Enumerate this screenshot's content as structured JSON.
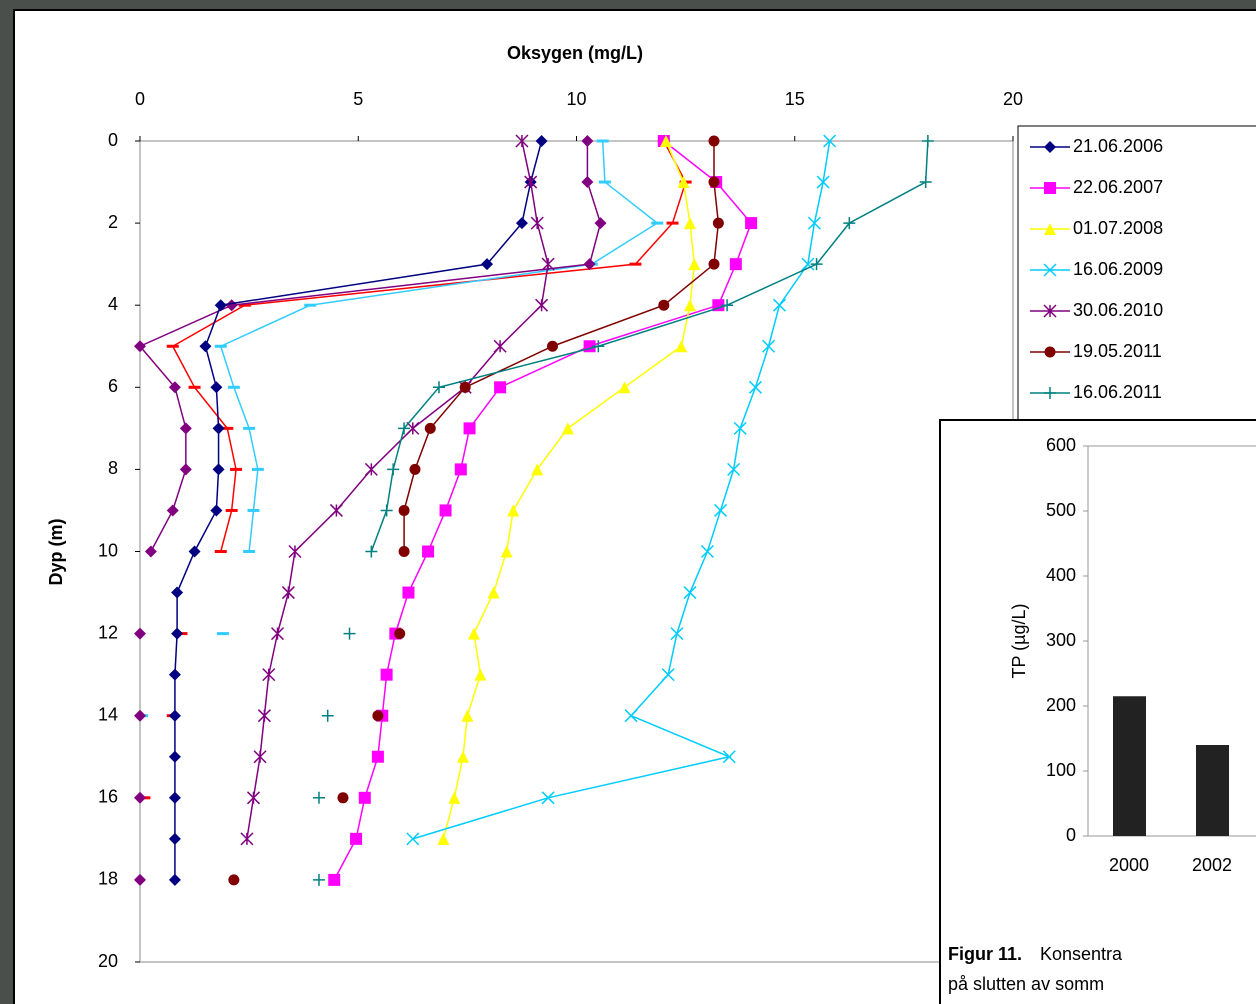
{
  "chart_data": [
    {
      "type": "line",
      "title": "Oksygen (mg/L)",
      "y_label": "Dyp (m)",
      "categories": [
        0,
        1,
        2,
        3,
        4,
        5,
        6,
        7,
        8,
        9,
        10,
        11,
        12,
        13,
        14,
        15,
        16,
        17,
        18
      ],
      "xlim": [
        0,
        20
      ],
      "xticks": [
        0,
        5,
        10,
        15,
        20
      ],
      "ylim": [
        0,
        20
      ],
      "yticks": [
        0,
        2,
        4,
        6,
        8,
        10,
        12,
        14,
        16,
        18,
        20
      ],
      "series": [
        {
          "color": "#ff0000",
          "marker": "dash",
          "values": [
            12.0,
            12.5,
            12.2,
            11.35,
            2.4,
            0.75,
            1.25,
            2.0,
            2.2,
            2.1,
            1.85,
            null,
            0.95,
            null,
            0.75,
            null,
            0.1,
            null,
            null
          ]
        },
        {
          "color": "#33ccff",
          "marker": "dash",
          "values": [
            10.6,
            10.65,
            11.85,
            10.35,
            3.9,
            1.85,
            2.15,
            2.5,
            2.7,
            2.6,
            2.5,
            null,
            1.9,
            null,
            0.05,
            null,
            null,
            null,
            null
          ]
        },
        {
          "color": "#800080",
          "marker": "diamond",
          "values": [
            10.25,
            10.25,
            10.55,
            10.3,
            2.1,
            0.0,
            0.8,
            1.05,
            1.05,
            0.75,
            0.25,
            null,
            0.0,
            null,
            0.0,
            null,
            0.0,
            null,
            0.0
          ]
        },
        {
          "name": "21.06.2006",
          "color": "#000080",
          "marker": "diamond",
          "values": [
            9.2,
            8.95,
            8.75,
            7.95,
            1.85,
            1.5,
            1.75,
            1.8,
            1.8,
            1.75,
            1.25,
            0.85,
            0.85,
            0.8,
            0.8,
            0.8,
            0.8,
            0.8,
            0.8
          ]
        },
        {
          "name": "22.06.2007",
          "color": "#ff00ff",
          "marker": "square",
          "values": [
            12.0,
            13.2,
            14.0,
            13.65,
            13.25,
            10.3,
            8.25,
            7.55,
            7.35,
            7.0,
            6.6,
            6.15,
            5.85,
            5.65,
            5.55,
            5.45,
            5.15,
            4.95,
            4.45
          ]
        },
        {
          "name": "01.07.2008",
          "color": "#ffff00",
          "marker": "triangle",
          "values": [
            12.05,
            12.45,
            12.6,
            12.7,
            12.6,
            12.4,
            11.1,
            9.8,
            9.1,
            8.55,
            8.4,
            8.1,
            7.65,
            7.8,
            7.5,
            7.4,
            7.2,
            6.95,
            null
          ]
        },
        {
          "name": "16.06.2009",
          "color": "#00ccff",
          "marker": "x",
          "values": [
            15.8,
            15.65,
            15.45,
            15.3,
            14.65,
            14.4,
            14.1,
            13.75,
            13.6,
            13.3,
            13.0,
            12.6,
            12.3,
            12.1,
            11.25,
            13.5,
            9.35,
            6.25,
            null
          ]
        },
        {
          "name": "30.06.2010",
          "color": "#800080",
          "marker": "star",
          "values": [
            8.75,
            8.95,
            9.1,
            9.35,
            9.2,
            8.25,
            7.45,
            6.25,
            5.3,
            4.5,
            3.55,
            3.4,
            3.15,
            2.95,
            2.85,
            2.75,
            2.6,
            2.45,
            null
          ]
        },
        {
          "name": "19.05.2011",
          "color": "#800000",
          "marker": "circle",
          "values": [
            13.15,
            13.15,
            13.25,
            13.15,
            12.0,
            9.45,
            7.45,
            6.65,
            6.3,
            6.05,
            6.05,
            null,
            5.95,
            null,
            5.45,
            null,
            4.65,
            null,
            2.15
          ]
        },
        {
          "name": "16.06.2011",
          "color": "#008080",
          "marker": "plus",
          "values": [
            18.05,
            18.0,
            16.25,
            15.5,
            13.45,
            10.5,
            6.85,
            6.05,
            5.8,
            5.65,
            5.3,
            null,
            4.8,
            null,
            4.3,
            null,
            4.1,
            null,
            4.1
          ]
        }
      ]
    },
    {
      "type": "bar",
      "y_label": "TP (µg/L)",
      "categories": [
        "2000",
        "2002"
      ],
      "values": [
        215,
        140
      ],
      "color": "#222222",
      "ylim": [
        0,
        600
      ],
      "yticks": [
        0,
        100,
        200,
        300,
        400,
        500,
        600
      ],
      "caption_label": "Figur 11.",
      "caption": [
        "Konsentra",
        "på slutten av somm"
      ]
    }
  ]
}
